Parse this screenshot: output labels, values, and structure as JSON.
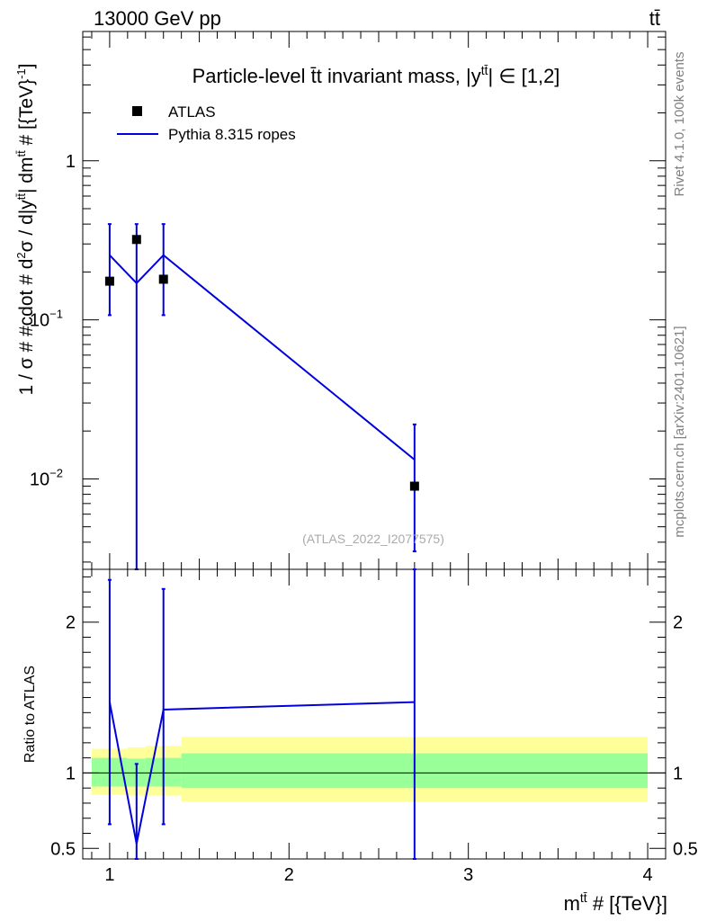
{
  "header": {
    "left": "13000 GeV pp",
    "right": "tt̄"
  },
  "side": {
    "rivet": "Rivet 4.1.0,  100k events",
    "source": "mcplots.cern.ch [arXiv:2401.10621]"
  },
  "chart_data": [
    {
      "type": "scatter",
      "panel": "main",
      "title": "Particle-level t̄t invariant mass, |y^{tt̄}| ∈ [1,2]",
      "title_parts": {
        "pre": "Particle-level t̄t invariant mass, |y",
        "sup": "tt̄",
        "post": "| ∈ [1,2]"
      },
      "ylabel": "1 / σ # #cdot # d²σ / d|y^{tt̄}| dm^{tt̄} # [{TeV}⁻¹]",
      "ylabel_parts": {
        "a": "1 / σ # #cdot # d",
        "b": "2",
        "c": "σ / d|y",
        "d": "tt̄",
        "e": "| dm",
        "f": "tt̄",
        "g": " # [{TeV}",
        "h": "-1",
        "i": "]"
      },
      "yscale": "log",
      "ylim": [
        0.0027,
        6.5
      ],
      "yticks": [
        {
          "value": 1,
          "label": "1"
        },
        {
          "value": 0.1,
          "label": "10",
          "exp": "−1"
        },
        {
          "value": 0.01,
          "label": "10",
          "exp": "−2"
        }
      ],
      "xlim": [
        0.85,
        4.1
      ],
      "watermark": "(ATLAS_2022_I2077575)",
      "series": [
        {
          "name": "ATLAS",
          "style": "markers",
          "color": "#000000",
          "x": [
            1.0,
            1.15,
            1.3,
            2.7
          ],
          "y": [
            0.175,
            0.32,
            0.18,
            0.009
          ],
          "xerr": [
            [
              0.0,
              0.0
            ],
            [
              0.0,
              0.0
            ],
            [
              0.0,
              0.0
            ],
            [
              0.0,
              0.0
            ]
          ]
        },
        {
          "name": "Pythia 8.315 ropes",
          "style": "line",
          "color": "#0000dd",
          "x": [
            1.0,
            1.15,
            1.3,
            2.7
          ],
          "y": [
            0.255,
            0.17,
            0.255,
            0.0132
          ],
          "yerr_low": [
            0.107,
            0.0001,
            0.107,
            0.0035
          ],
          "yerr_high": [
            0.4,
            0.4,
            0.4,
            0.022
          ]
        }
      ],
      "legend_position": "top-left"
    },
    {
      "type": "line",
      "panel": "ratio",
      "ylabel": "Ratio to ATLAS",
      "ylim": [
        0.43,
        2.35
      ],
      "yticks": [
        {
          "value": 2,
          "label": "2"
        },
        {
          "value": 1,
          "label": "1"
        },
        {
          "value": 0.5,
          "label": "0.5"
        }
      ],
      "xlim": [
        0.85,
        4.1
      ],
      "xticks": [
        {
          "value": 1,
          "label": "1"
        },
        {
          "value": 2,
          "label": "2"
        },
        {
          "value": 3,
          "label": "3"
        },
        {
          "value": 4,
          "label": "4"
        }
      ],
      "xlabel": "m^{tt̄} # [{TeV}]",
      "xlabel_parts": {
        "a": "m",
        "b": "tt̄",
        "c": " # [{TeV}]"
      },
      "bands": [
        {
          "x0": 0.9,
          "x1": 1.1,
          "yellow": [
            0.855,
            1.16
          ],
          "green": [
            0.91,
            1.1
          ]
        },
        {
          "x0": 1.1,
          "x1": 1.2,
          "yellow": [
            0.85,
            1.17
          ],
          "green": [
            0.91,
            1.095
          ]
        },
        {
          "x0": 1.2,
          "x1": 1.4,
          "yellow": [
            0.85,
            1.18
          ],
          "green": [
            0.91,
            1.1
          ]
        },
        {
          "x0": 1.4,
          "x1": 4.0,
          "yellow": [
            0.81,
            1.24
          ],
          "green": [
            0.9,
            1.13
          ]
        }
      ],
      "series": [
        {
          "name": "Pythia 8.315 ropes",
          "color": "#0000dd",
          "x": [
            1.0,
            1.15,
            1.3,
            2.7
          ],
          "y": [
            1.47,
            0.53,
            1.42,
            1.47
          ],
          "yerr_low": [
            0.66,
            0.43,
            0.66,
            0.38
          ],
          "yerr_high": [
            2.28,
            1.06,
            2.22,
            2.35
          ]
        }
      ],
      "reference_line": 1
    }
  ]
}
